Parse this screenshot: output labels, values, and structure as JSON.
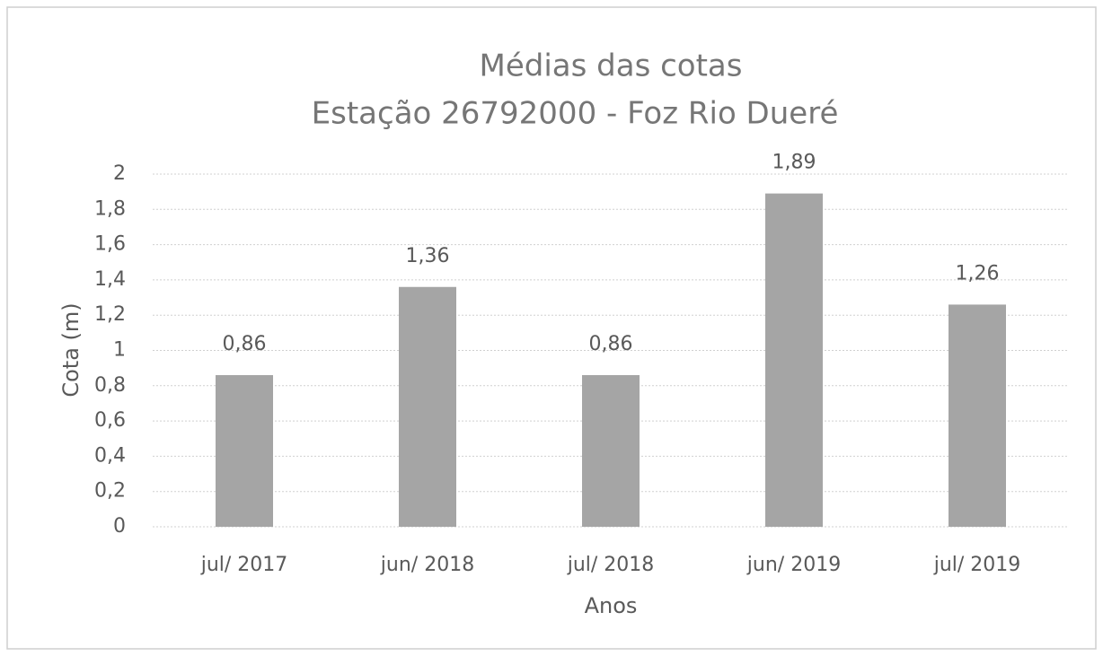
{
  "chart_data": {
    "type": "bar",
    "title": "Médias das cotas",
    "subtitle": "Estação 26792000 - Foz Rio Dueré",
    "x_label": "Anos",
    "y_label": "Cota (m)",
    "categories": [
      "jul/ 2017",
      "jun/ 2018",
      "jul/ 2018",
      "jun/ 2019",
      "jul/ 2019"
    ],
    "values": [
      0.86,
      1.36,
      0.86,
      1.89,
      1.26
    ],
    "value_labels": [
      "0,86",
      "1,36",
      "0,86",
      "1,89",
      "1,26"
    ],
    "color": "#a5a5a5",
    "ylim": [
      0,
      2
    ],
    "yticks": [
      0,
      {
        "value": 0.2,
        "label": "0,2"
      },
      {
        "value": 0.4,
        "label": "0,4"
      },
      {
        "value": 0.6,
        "label": "0,6"
      },
      {
        "value": 0.8,
        "label": "0,8"
      },
      1,
      {
        "value": 1.2,
        "label": "1,2"
      },
      {
        "value": 1.4,
        "label": "1,4"
      },
      {
        "value": 1.6,
        "label": "1,6"
      },
      {
        "value": 1.8,
        "label": "1,8"
      },
      2
    ],
    "grid": true
  }
}
